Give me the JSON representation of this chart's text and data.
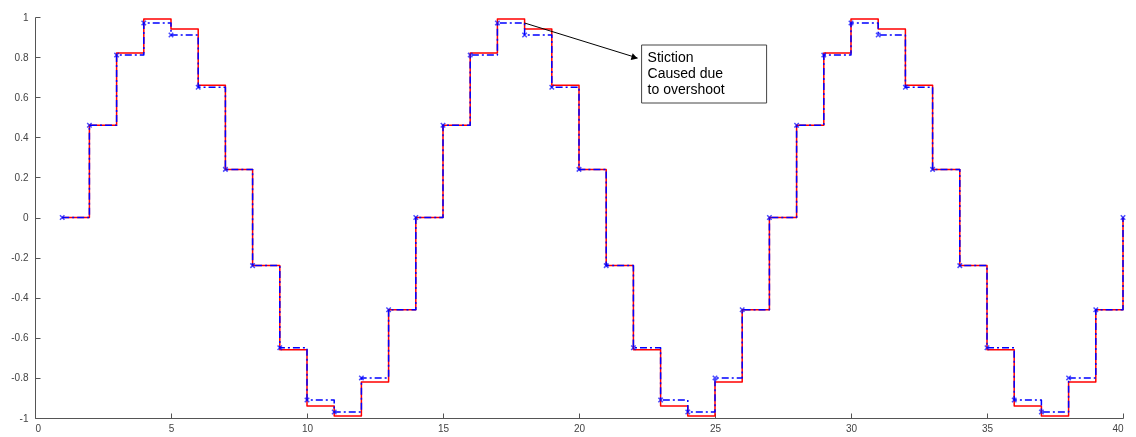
{
  "chart_data": {
    "type": "step",
    "x": [
      1,
      2,
      3,
      4,
      5,
      6,
      7,
      8,
      9,
      10,
      11,
      12,
      13,
      14,
      15,
      16,
      17,
      18,
      19,
      20,
      21,
      22,
      23,
      24,
      25,
      26,
      27,
      28,
      29,
      30,
      31,
      32,
      33,
      34,
      35,
      36,
      37,
      38,
      39,
      40
    ],
    "series": [
      {
        "color": "#ff0000",
        "marker": "none",
        "line_style": "solid",
        "values": [
          0,
          0.46,
          0.82,
          0.99,
          0.94,
          0.66,
          0.24,
          -0.24,
          -0.66,
          -0.94,
          -0.99,
          -0.82,
          -0.46,
          0,
          0.46,
          0.82,
          0.99,
          0.94,
          0.66,
          0.24,
          -0.24,
          -0.66,
          -0.94,
          -0.99,
          -0.82,
          -0.46,
          0,
          0.46,
          0.82,
          0.99,
          0.94,
          0.66,
          0.24,
          -0.24,
          -0.66,
          -0.94,
          -0.99,
          -0.82,
          -0.46,
          0
        ]
      },
      {
        "color": "#0000ff",
        "marker": "cross",
        "line_style": "dashed",
        "values": [
          0,
          0.46,
          0.81,
          0.97,
          0.91,
          0.65,
          0.24,
          -0.24,
          -0.65,
          -0.91,
          -0.97,
          -0.8,
          -0.46,
          0,
          0.46,
          0.81,
          0.97,
          0.91,
          0.65,
          0.24,
          -0.24,
          -0.65,
          -0.91,
          -0.97,
          -0.8,
          -0.46,
          0,
          0.46,
          0.81,
          0.97,
          0.91,
          0.65,
          0.24,
          -0.24,
          -0.65,
          -0.91,
          -0.97,
          -0.8,
          -0.46,
          0
        ]
      }
    ],
    "xlim": [
      0,
      40
    ],
    "xticks": [
      0,
      5,
      10,
      15,
      20,
      25,
      30,
      35,
      40
    ],
    "ylim": [
      -1,
      1
    ],
    "yticks": [
      {
        "value": -1,
        "label": "-1"
      },
      -0.8,
      -0.6,
      -0.4,
      -0.2,
      {
        "value": 0,
        "label": "0"
      },
      0.2,
      0.4,
      0.6,
      0.8,
      {
        "value": 1,
        "label": "1"
      }
    ],
    "grid": false,
    "annotations": [
      {
        "text": "Stiction\nCaused due\nto overshoot",
        "x": 18,
        "y": 0.97
      }
    ]
  }
}
